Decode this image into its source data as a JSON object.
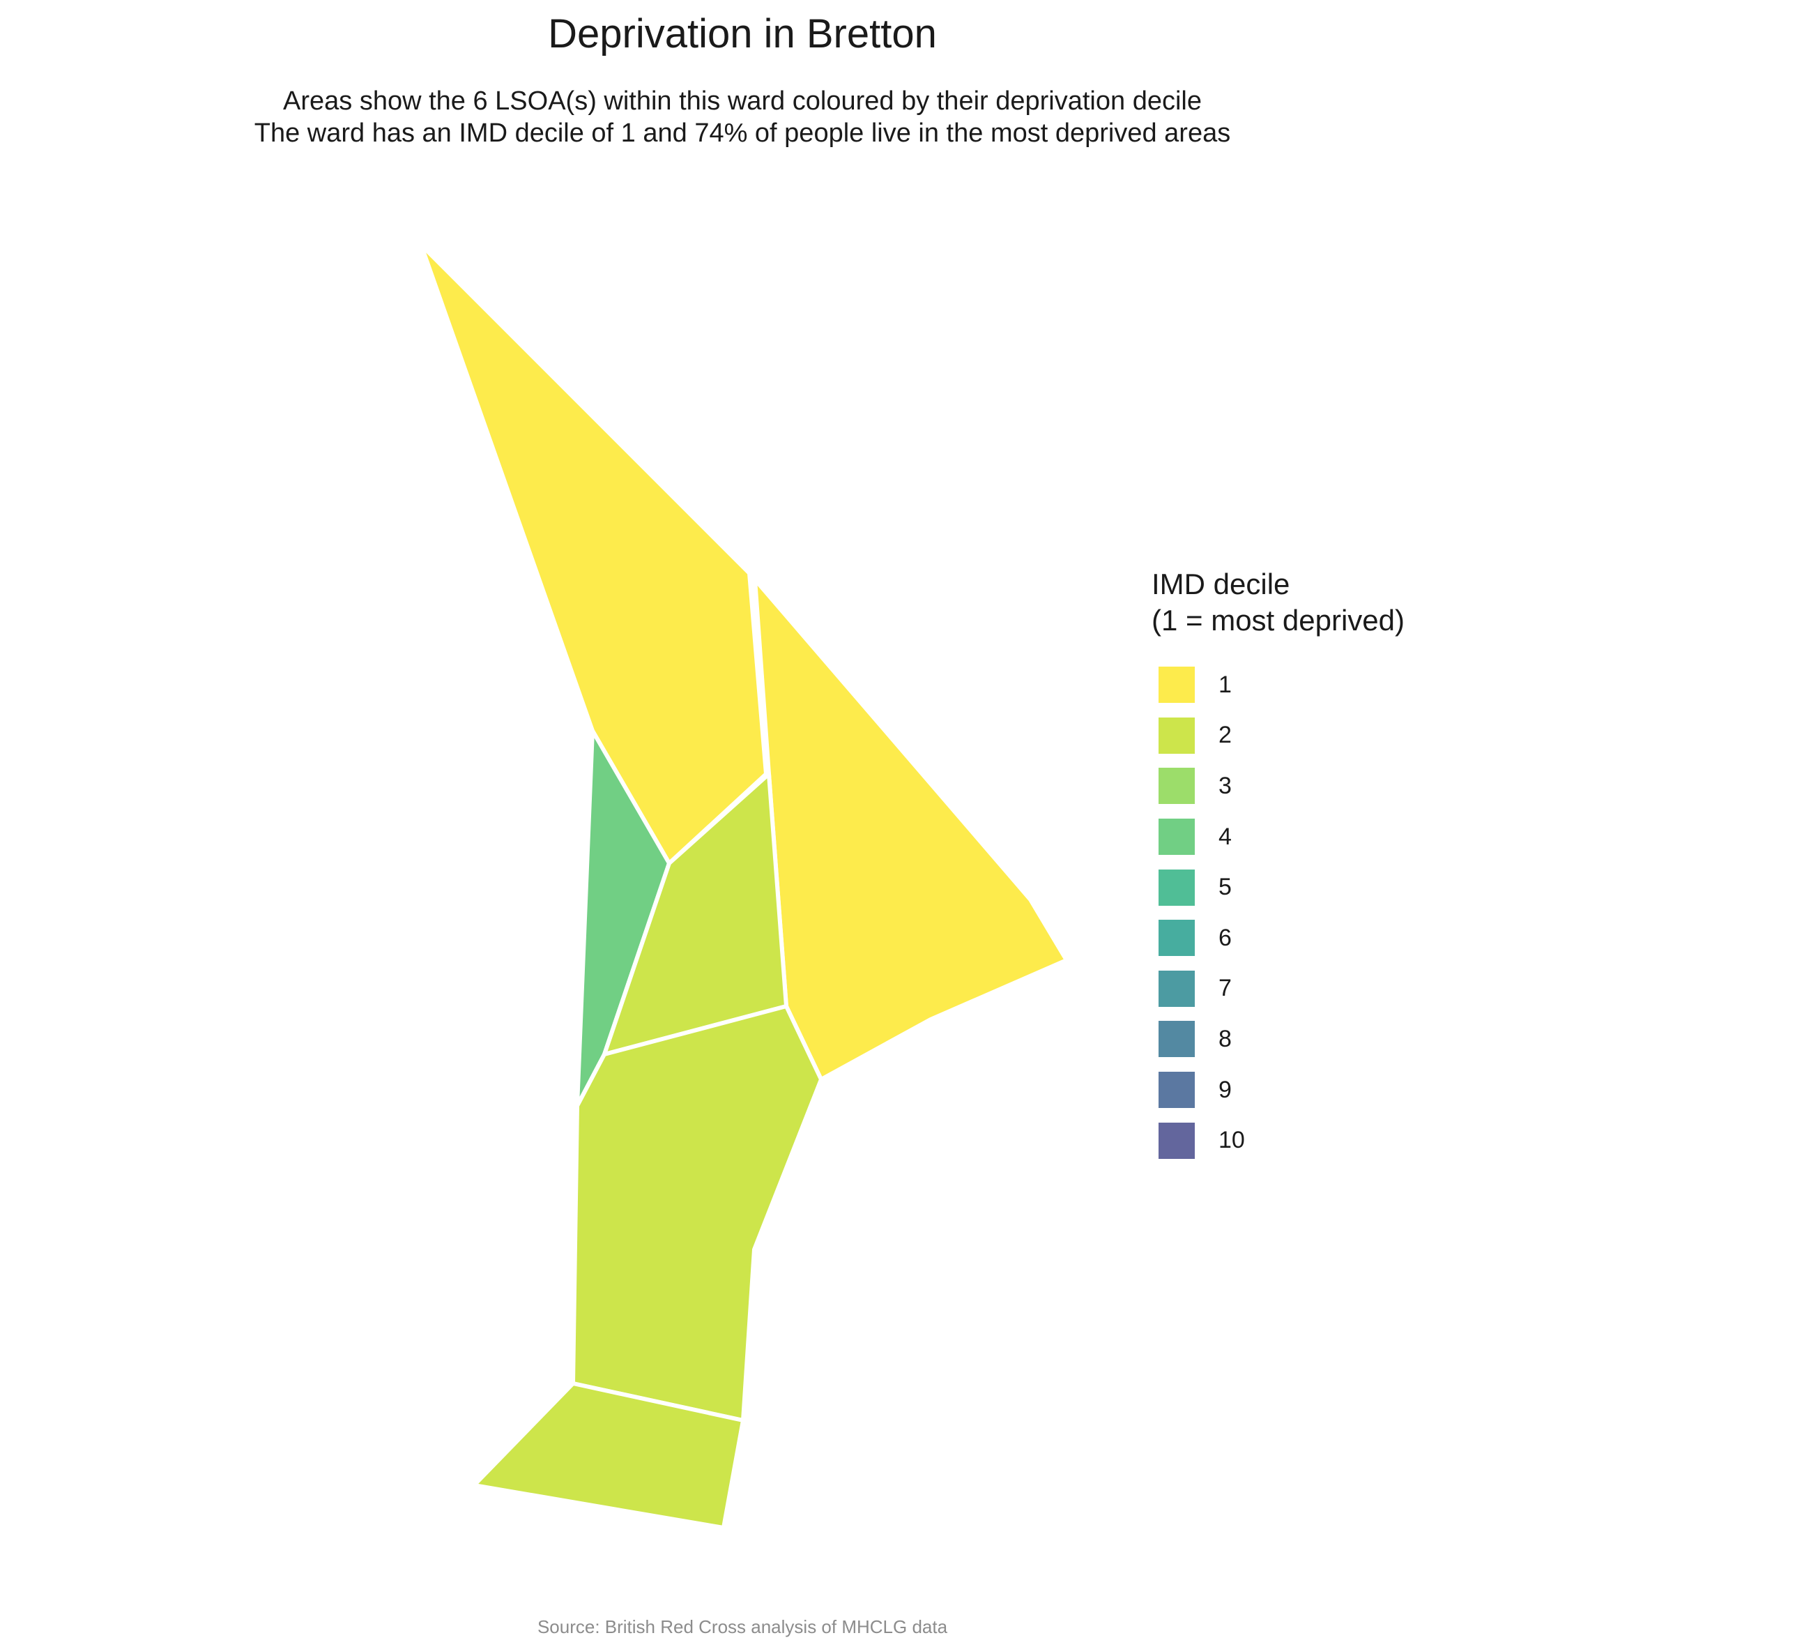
{
  "title": "Deprivation in Bretton",
  "subtitle": {
    "line1": "Areas show the 6 LSOA(s) within this ward coloured by their deprivation decile",
    "line2": "The ward has an IMD decile of 1 and 74% of people live in the most deprived areas"
  },
  "legend": {
    "title_line1": "IMD decile",
    "title_line2": "(1 = most deprived)",
    "items": [
      {
        "label": "1",
        "color": "#FDE725"
      },
      {
        "label": "2",
        "color": "#C2DF23"
      },
      {
        "label": "3",
        "color": "#86D549"
      },
      {
        "label": "4",
        "color": "#52C569"
      },
      {
        "label": "5",
        "color": "#2AB07F"
      },
      {
        "label": "6",
        "color": "#1E9B8A"
      },
      {
        "label": "7",
        "color": "#25858E"
      },
      {
        "label": "8",
        "color": "#2D6F8E"
      },
      {
        "label": "9",
        "color": "#375A8C"
      },
      {
        "label": "10",
        "color": "#414487"
      }
    ]
  },
  "caption": "Source: British Red Cross analysis of MHCLG data",
  "map": {
    "areas": [
      {
        "name": "lsoa-north-west",
        "decile": 1
      },
      {
        "name": "lsoa-east",
        "decile": 1
      },
      {
        "name": "lsoa-west-sliver",
        "decile": 4
      },
      {
        "name": "lsoa-central",
        "decile": 2
      },
      {
        "name": "lsoa-south",
        "decile": 2
      },
      {
        "name": "lsoa-south-tip",
        "decile": 2
      }
    ],
    "border_color": "#FFFFFF"
  }
}
